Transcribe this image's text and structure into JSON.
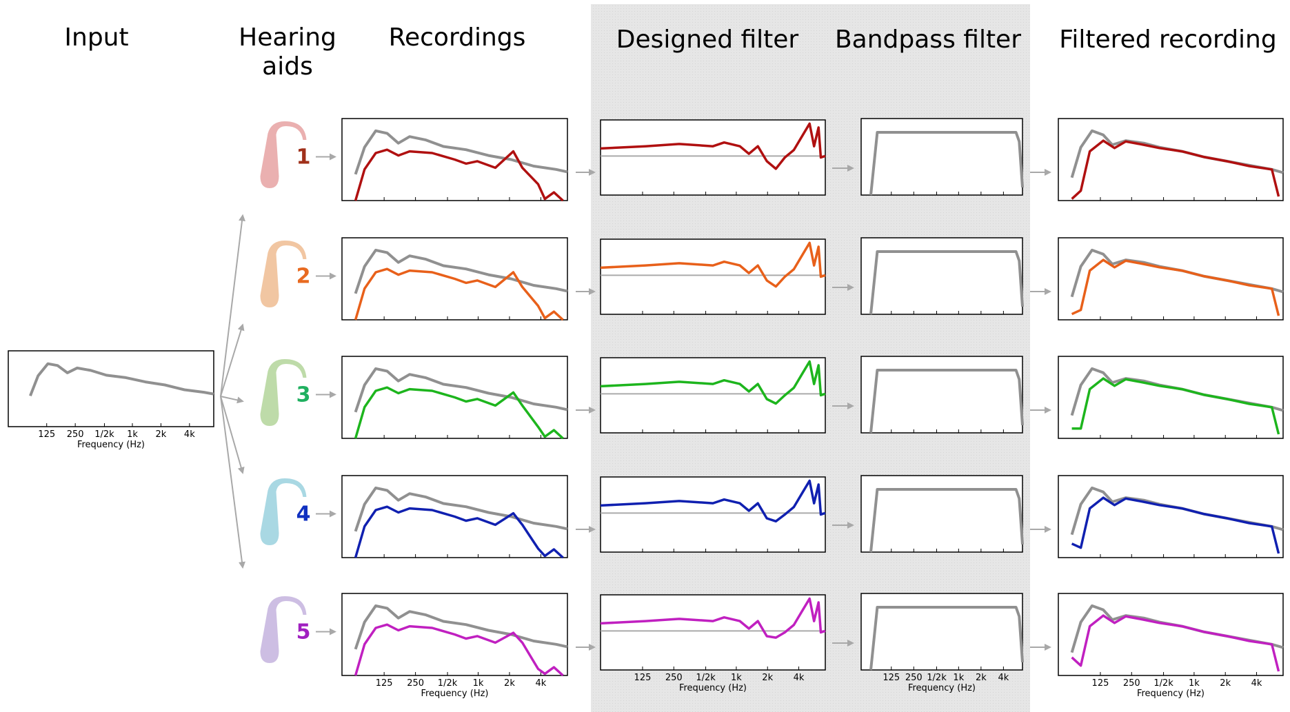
{
  "headers": {
    "input": "Input",
    "hearing_aids": [
      "Hearing",
      "aids"
    ],
    "recordings": "Recordings",
    "designed_filter": "Designed filter",
    "bandpass_filter": "Bandpass filter",
    "filtered_recording": "Filtered recording"
  },
  "hearing_aid_numbers": [
    "1",
    "2",
    "3",
    "4",
    "5"
  ],
  "frequency_axis": {
    "ticks": [
      "125",
      "250",
      "1/2k",
      "1k",
      "2k",
      "4k"
    ],
    "label": "Frequency (Hz)"
  }
}
